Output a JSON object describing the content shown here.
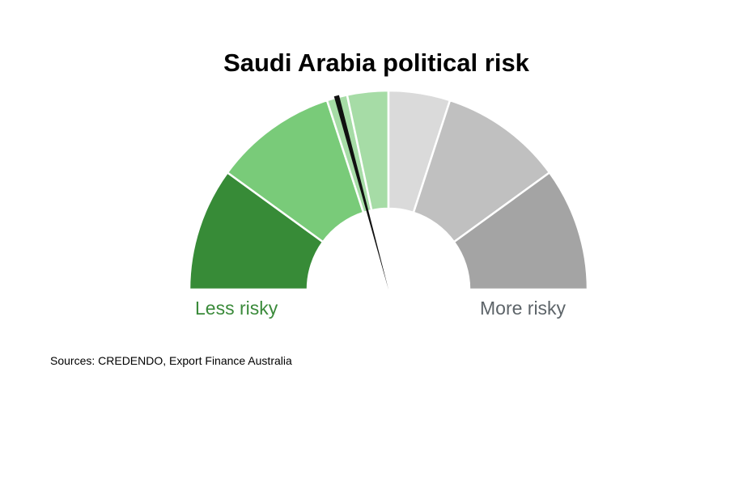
{
  "chart_data": {
    "type": "gauge",
    "title": "Saudi Arabia political risk",
    "segments": [
      {
        "color": "#378b37",
        "span_deg": 36
      },
      {
        "color": "#79cb79",
        "span_deg": 36
      },
      {
        "color": "#a6dca6",
        "span_deg": 6
      },
      {
        "color": "#a6dca6",
        "span_deg": 12
      },
      {
        "color": "#dadada",
        "span_deg": 18
      },
      {
        "color": "#c0c0c0",
        "span_deg": 36
      },
      {
        "color": "#a4a4a4",
        "span_deg": 36
      }
    ],
    "needle_angle_deg": 105,
    "min_label": "Less risky",
    "max_label": "More risky",
    "source": "Sources: CREDENDO, Export Finance Australia"
  }
}
